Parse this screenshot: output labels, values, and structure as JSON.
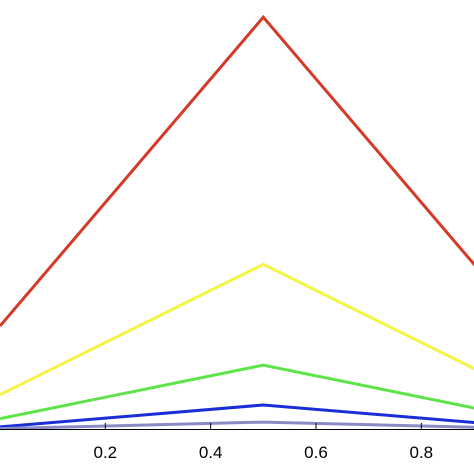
{
  "chart_data": {
    "type": "line",
    "title": "",
    "xlabel": "",
    "ylabel": "",
    "xlim": [
      0.0,
      0.9
    ],
    "ylim": [
      0.0,
      1.0
    ],
    "grid": false,
    "x_ticks": [
      {
        "value": 0.2,
        "label": "0.2"
      },
      {
        "value": 0.4,
        "label": "0.4"
      },
      {
        "value": 0.6,
        "label": "0.6"
      },
      {
        "value": 0.8,
        "label": "0.8"
      }
    ],
    "series": [
      {
        "color": "#d43a28",
        "x": [
          0.0,
          0.5,
          1.0
        ],
        "y": [
          0.24,
          0.96,
          0.24
        ]
      },
      {
        "color": "#f3f34a",
        "x": [
          0.0,
          0.5,
          1.0
        ],
        "y": [
          0.08,
          0.384,
          0.08
        ]
      },
      {
        "color": "#5fe34a",
        "x": [
          0.0,
          0.5,
          1.0
        ],
        "y": [
          0.024,
          0.149,
          0.024
        ]
      },
      {
        "color": "#1b2ed6",
        "x": [
          0.0,
          0.5,
          1.0
        ],
        "y": [
          0.005,
          0.056,
          0.005
        ]
      },
      {
        "color": "#8a8ac7",
        "x": [
          0.0,
          0.5,
          1.0
        ],
        "y": [
          0.001,
          0.016,
          0.001
        ]
      }
    ]
  }
}
